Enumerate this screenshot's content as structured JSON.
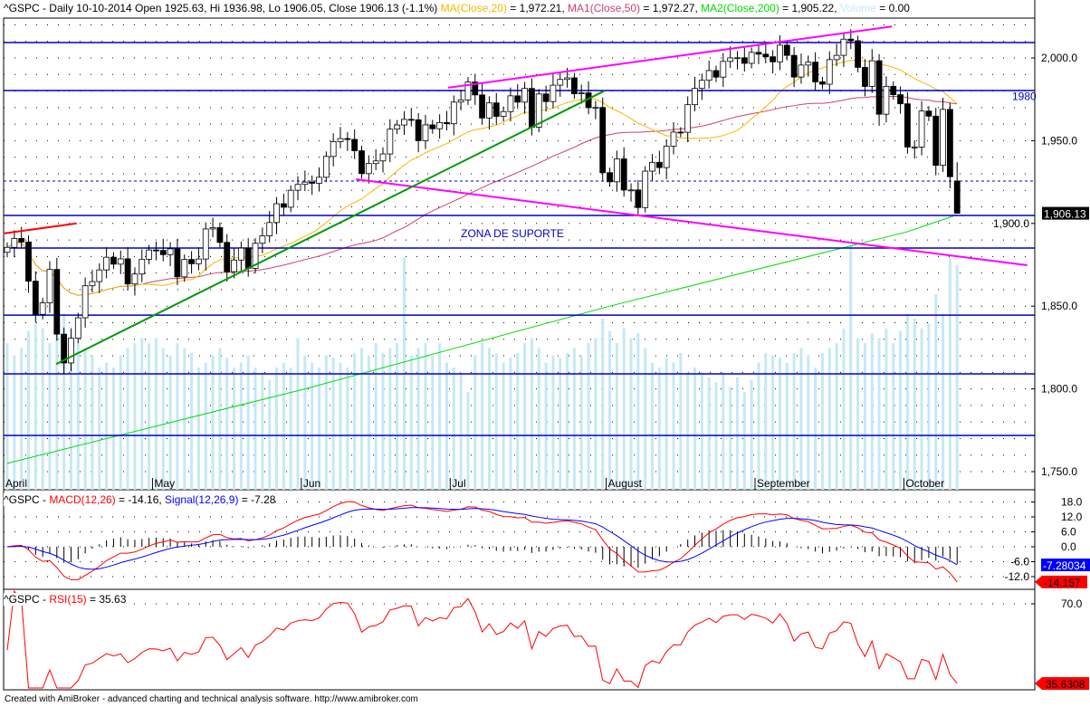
{
  "header": {
    "ticker": "^GSPC",
    "price_title": "^GSPC - Daily 10-10-2014 Open 1925.63, Hi 1936.98, Lo 1906.05, Close 1906.13 (-1.1%)",
    "ma_label": "MA(Close,20)",
    "ma_value": " = 1,972.21, ",
    "ma1_label": "MA1(Close,50)",
    "ma1_value": " = 1,972.27, ",
    "ma2_label": "MA2(Close,200)",
    "ma2_value": " = 1,905.22, ",
    "vol_label": "Volume",
    "vol_value": " = 0.00",
    "macd_prefix": "^GSPC - ",
    "macd_label": "MACD(12,26)",
    "macd_value": " = -14.16, ",
    "signal_label": "Signal(12,26,9)",
    "signal_value": " = -7.28",
    "rsi_prefix": "^GSPC - ",
    "rsi_label": "RSI(15)",
    "rsi_value": " = 35.63"
  },
  "footer": "Created with AmiBroker - advanced charting and technical analysis software. http://www.amibroker.com",
  "colors": {
    "ma20": "#f5b800",
    "ma50": "#d0406a",
    "ma200": "#00dd00",
    "volume": "#c6e8f7",
    "macd": "#ff0000",
    "signal": "#0000ff",
    "rsi": "#ff0000",
    "hline": "#0000c8",
    "trend_magenta": "#ff00ff",
    "trend_green": "#009900",
    "up": "#ffffff",
    "down": "#000000"
  },
  "chart_data": [
    {
      "type": "candlestick",
      "title": "^GSPC - Daily 10-10-2014",
      "x_tick_labels": [
        {
          "label": "April",
          "index": 0
        },
        {
          "label": "May",
          "index": 21
        },
        {
          "label": "Jun",
          "index": 42
        },
        {
          "label": "Jul",
          "index": 63
        },
        {
          "label": "August",
          "index": 85
        },
        {
          "label": "September",
          "index": 106
        },
        {
          "label": "October",
          "index": 127
        }
      ],
      "y_ticks": [
        2000,
        1950,
        1900,
        1850,
        1800,
        1750
      ],
      "y_tick_labels": [
        "2,000.0",
        "1,950.0",
        "1,900.0",
        "1,850.0",
        "1,800.0",
        "1,750.0"
      ],
      "ylim": [
        1742,
        2031
      ],
      "close": [
        1885.52,
        1890.9,
        1888.77,
        1865.09,
        1845.04,
        1851.96,
        1872.18,
        1833.08,
        1815.69,
        1830.61,
        1842.98,
        1862.31,
        1864.85,
        1871.89,
        1879.55,
        1875.39,
        1878.61,
        1863.4,
        1869.43,
        1878.33,
        1883.95,
        1883.68,
        1881.14,
        1884.66,
        1867.72,
        1878.21,
        1875.63,
        1878.48,
        1896.65,
        1897.45,
        1888.53,
        1870.85,
        1877.86,
        1885.08,
        1872.83,
        1888.03,
        1892.49,
        1900.53,
        1911.91,
        1909.78,
        1920.03,
        1923.57,
        1924.97,
        1924.24,
        1927.88,
        1940.46,
        1949.44,
        1951.27,
        1950.79,
        1943.89,
        1930.11,
        1936.16,
        1937.78,
        1941.99,
        1956.98,
        1959.48,
        1962.87,
        1962.61,
        1949.98,
        1959.53,
        1957.22,
        1960.96,
        1960.23,
        1973.32,
        1974.62,
        1985.44,
        1977.65,
        1963.71,
        1972.83,
        1964.68,
        1967.57,
        1977.1,
        1973.28,
        1981.57,
        1958.12,
        1978.22,
        1973.63,
        1983.53,
        1987.01,
        1987.98,
        1978.34,
        1978.91,
        1969.95,
        1970.07,
        1930.67,
        1925.15,
        1938.99,
        1920.21,
        1920.24,
        1909.57,
        1931.59,
        1936.92,
        1933.75,
        1946.72,
        1955.18,
        1955.06,
        1971.74,
        1981.6,
        1986.51,
        1992.37,
        1988.4,
        1997.92,
        2000.02,
        2000.12,
        1996.74,
        2003.37,
        2002.28,
        2000.72,
        1997.65,
        2007.71,
        2001.54,
        1988.44,
        1995.69,
        1997.45,
        1985.54,
        1984.13,
        1998.98,
        2001.57,
        2011.36,
        2010.4,
        1994.29,
        1982.77,
        1998.3,
        1965.99,
        1982.85,
        1977.8,
        1972.29,
        1946.16,
        1946.17,
        1967.9,
        1964.82,
        1935.1,
        1968.89,
        1928.21,
        1906.13
      ],
      "last": {
        "open": 1925.63,
        "high": 1936.98,
        "low": 1906.05,
        "close": 1906.13,
        "label": "1,906.13"
      },
      "ma200_points": [
        [
          0,
          1755
        ],
        [
          42,
          1800
        ],
        [
          85,
          1850
        ],
        [
          127,
          1895
        ],
        [
          134,
          1905.22
        ]
      ],
      "volume_relative": [
        60,
        55,
        58,
        65,
        68,
        66,
        60,
        70,
        72,
        62,
        60,
        58,
        55,
        50,
        52,
        50,
        55,
        58,
        60,
        62,
        60,
        62,
        58,
        55,
        60,
        58,
        56,
        50,
        52,
        55,
        58,
        54,
        50,
        52,
        55,
        50,
        48,
        45,
        50,
        52,
        50,
        62,
        55,
        52,
        50,
        55,
        54,
        52,
        50,
        56,
        58,
        55,
        60,
        56,
        58,
        60,
        95,
        55,
        58,
        60,
        55,
        60,
        52,
        50,
        48,
        40,
        55,
        60,
        58,
        56,
        52,
        54,
        56,
        60,
        62,
        58,
        52,
        55,
        54,
        56,
        58,
        55,
        60,
        62,
        70,
        65,
        60,
        66,
        62,
        64,
        58,
        52,
        50,
        54,
        52,
        56,
        48,
        50,
        48,
        46,
        44,
        48,
        42,
        46,
        40,
        45,
        52,
        56,
        55,
        54,
        52,
        56,
        58,
        55,
        50,
        56,
        58,
        60,
        66,
        100,
        62,
        60,
        64,
        62,
        66,
        60,
        65,
        72,
        70,
        66,
        68,
        80,
        72,
        95,
        92
      ],
      "horizontal_lines": [
        2009.3,
        1980.3,
        1904.8,
        1885.1,
        1844.6,
        1809.1,
        1771.9
      ],
      "dashed_line": 1925.63,
      "hline_label": "1980",
      "trendlines": [
        {
          "color": "magenta",
          "points": [
            [
              62.2,
              1982
            ],
            [
              124.8,
              2019
            ]
          ]
        },
        {
          "color": "magenta",
          "points": [
            [
              49.2,
              1926.7
            ],
            [
              143.9,
              1874.7
            ]
          ]
        },
        {
          "color": "green",
          "points": [
            [
              6.9,
              1815
            ],
            [
              84.2,
              1980
            ]
          ]
        },
        {
          "color": "red",
          "points": [
            [
              -0.4,
              1894
            ],
            [
              9.8,
              1900
            ]
          ]
        }
      ],
      "annotation": {
        "text": "ZONA DE SUPORTE",
        "index": 64,
        "price": 1894
      }
    },
    {
      "type": "line",
      "title": "MACD(12,26) = -14.16, Signal(12,26,9) = -7.28",
      "y_ticks": [
        18,
        12,
        6,
        0,
        -6,
        -12
      ],
      "y_tick_labels": [
        "18.0",
        "12.0",
        "6.0",
        "0.0",
        "-6.0",
        "-12.0"
      ],
      "last_macd": -14.157,
      "last_macd_label": "-14.157",
      "last_signal": -7.28034,
      "last_signal_label": "-7.28034"
    },
    {
      "type": "line",
      "title": "RSI(15) = 35.63",
      "y_ticks": [
        70
      ],
      "y_tick_labels": [
        "70.0"
      ],
      "last_rsi": 35.6308,
      "last_rsi_label": "35.6308"
    }
  ]
}
